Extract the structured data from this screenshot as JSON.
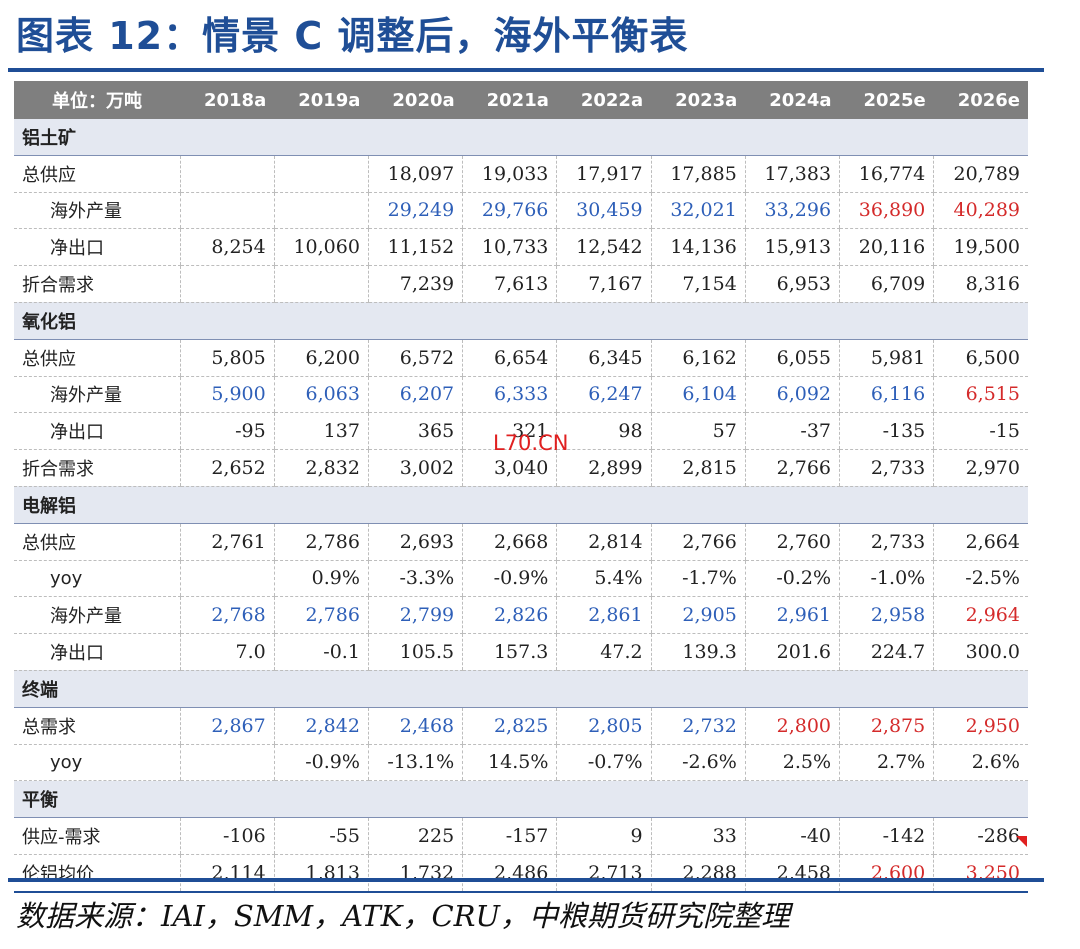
{
  "title": "图表 12：情景 C 调整后，海外平衡表",
  "header": [
    "单位：万吨",
    "2018a",
    "2019a",
    "2020a",
    "2021a",
    "2022a",
    "2023a",
    "2024a",
    "2025e",
    "2026e"
  ],
  "rows": [
    {
      "t": "sec",
      "label": "铝土矿"
    },
    {
      "t": "row",
      "label": "总供应",
      "indent": false,
      "v": [
        "",
        "",
        "18,097",
        "19,033",
        "17,917",
        "17,885",
        "17,383",
        "16,774",
        "20,789"
      ],
      "c": [
        "",
        "",
        "",
        "",
        "",
        "",
        "",
        "",
        ""
      ]
    },
    {
      "t": "row",
      "label": "海外产量",
      "indent": true,
      "v": [
        "",
        "",
        "29,249",
        "29,766",
        "30,459",
        "32,021",
        "33,296",
        "36,890",
        "40,289"
      ],
      "c": [
        "",
        "",
        "blue",
        "blue",
        "blue",
        "blue",
        "blue",
        "red",
        "red"
      ]
    },
    {
      "t": "row",
      "label": "净出口",
      "indent": true,
      "v": [
        "8,254",
        "10,060",
        "11,152",
        "10,733",
        "12,542",
        "14,136",
        "15,913",
        "20,116",
        "19,500"
      ],
      "c": [
        "",
        "",
        "",
        "",
        "",
        "",
        "",
        "",
        ""
      ]
    },
    {
      "t": "row",
      "label": "折合需求",
      "indent": false,
      "v": [
        "",
        "",
        "7,239",
        "7,613",
        "7,167",
        "7,154",
        "6,953",
        "6,709",
        "8,316"
      ],
      "c": [
        "",
        "",
        "",
        "",
        "",
        "",
        "",
        "",
        ""
      ]
    },
    {
      "t": "sec",
      "label": "氧化铝"
    },
    {
      "t": "row",
      "label": "总供应",
      "indent": false,
      "v": [
        "5,805",
        "6,200",
        "6,572",
        "6,654",
        "6,345",
        "6,162",
        "6,055",
        "5,981",
        "6,500"
      ],
      "c": [
        "",
        "",
        "",
        "",
        "",
        "",
        "",
        "",
        ""
      ]
    },
    {
      "t": "row",
      "label": "海外产量",
      "indent": true,
      "v": [
        "5,900",
        "6,063",
        "6,207",
        "6,333",
        "6,247",
        "6,104",
        "6,092",
        "6,116",
        "6,515"
      ],
      "c": [
        "blue",
        "blue",
        "blue",
        "blue",
        "blue",
        "blue",
        "blue",
        "blue",
        "red"
      ]
    },
    {
      "t": "row",
      "label": "净出口",
      "indent": true,
      "v": [
        "-95",
        "137",
        "365",
        "321",
        "98",
        "57",
        "-37",
        "-135",
        "-15"
      ],
      "c": [
        "",
        "",
        "",
        "",
        "",
        "",
        "",
        "",
        ""
      ]
    },
    {
      "t": "row",
      "label": "折合需求",
      "indent": false,
      "v": [
        "2,652",
        "2,832",
        "3,002",
        "3,040",
        "2,899",
        "2,815",
        "2,766",
        "2,733",
        "2,970"
      ],
      "c": [
        "",
        "",
        "",
        "",
        "",
        "",
        "",
        "",
        ""
      ]
    },
    {
      "t": "sec",
      "label": "电解铝"
    },
    {
      "t": "row",
      "label": "总供应",
      "indent": false,
      "v": [
        "2,761",
        "2,786",
        "2,693",
        "2,668",
        "2,814",
        "2,766",
        "2,760",
        "2,733",
        "2,664"
      ],
      "c": [
        "",
        "",
        "",
        "",
        "",
        "",
        "",
        "",
        ""
      ]
    },
    {
      "t": "row",
      "label": "yoy",
      "indent": true,
      "v": [
        "",
        "0.9%",
        "-3.3%",
        "-0.9%",
        "5.4%",
        "-1.7%",
        "-0.2%",
        "-1.0%",
        "-2.5%"
      ],
      "c": [
        "",
        "",
        "",
        "",
        "",
        "",
        "",
        "",
        ""
      ]
    },
    {
      "t": "row",
      "label": "海外产量",
      "indent": true,
      "v": [
        "2,768",
        "2,786",
        "2,799",
        "2,826",
        "2,861",
        "2,905",
        "2,961",
        "2,958",
        "2,964"
      ],
      "c": [
        "blue",
        "blue",
        "blue",
        "blue",
        "blue",
        "blue",
        "blue",
        "blue",
        "red"
      ]
    },
    {
      "t": "row",
      "label": "净出口",
      "indent": true,
      "v": [
        "7.0",
        "-0.1",
        "105.5",
        "157.3",
        "47.2",
        "139.3",
        "201.6",
        "224.7",
        "300.0"
      ],
      "c": [
        "",
        "",
        "",
        "",
        "",
        "",
        "",
        "",
        ""
      ]
    },
    {
      "t": "sec",
      "label": "终端"
    },
    {
      "t": "row",
      "label": "总需求",
      "indent": false,
      "v": [
        "2,867",
        "2,842",
        "2,468",
        "2,825",
        "2,805",
        "2,732",
        "2,800",
        "2,875",
        "2,950"
      ],
      "c": [
        "blue",
        "blue",
        "blue",
        "blue",
        "blue",
        "blue",
        "red",
        "red",
        "red"
      ]
    },
    {
      "t": "row",
      "label": "yoy",
      "indent": true,
      "v": [
        "",
        "-0.9%",
        "-13.1%",
        "14.5%",
        "-0.7%",
        "-2.6%",
        "2.5%",
        "2.7%",
        "2.6%"
      ],
      "c": [
        "",
        "",
        "",
        "",
        "",
        "",
        "",
        "",
        ""
      ]
    },
    {
      "t": "sec",
      "label": "平衡"
    },
    {
      "t": "row",
      "label": "供应-需求",
      "indent": false,
      "v": [
        "-106",
        "-55",
        "225",
        "-157",
        "9",
        "33",
        "-40",
        "-142",
        "-286"
      ],
      "c": [
        "",
        "",
        "",
        "",
        "",
        "",
        "",
        "",
        ""
      ]
    },
    {
      "t": "row",
      "label": "伦铝均价",
      "indent": false,
      "last": true,
      "v": [
        "2,114",
        "1,813",
        "1,732",
        "2,486",
        "2,713",
        "2,288",
        "2,458",
        "2,600",
        "3,250"
      ],
      "c": [
        "",
        "",
        "",
        "",
        "",
        "",
        "",
        "red",
        "red"
      ]
    }
  ],
  "watermark": "L70.CN",
  "source": "数据来源：IAI，SMM，ATK，CRU，中粮期货研究院整理",
  "colors": {
    "accent": "#1f4e96",
    "blue_values": "#2e5fb8",
    "red_values": "#d42a2a",
    "header_bg": "#7f7f7f",
    "section_bg": "#e4e8f1"
  }
}
